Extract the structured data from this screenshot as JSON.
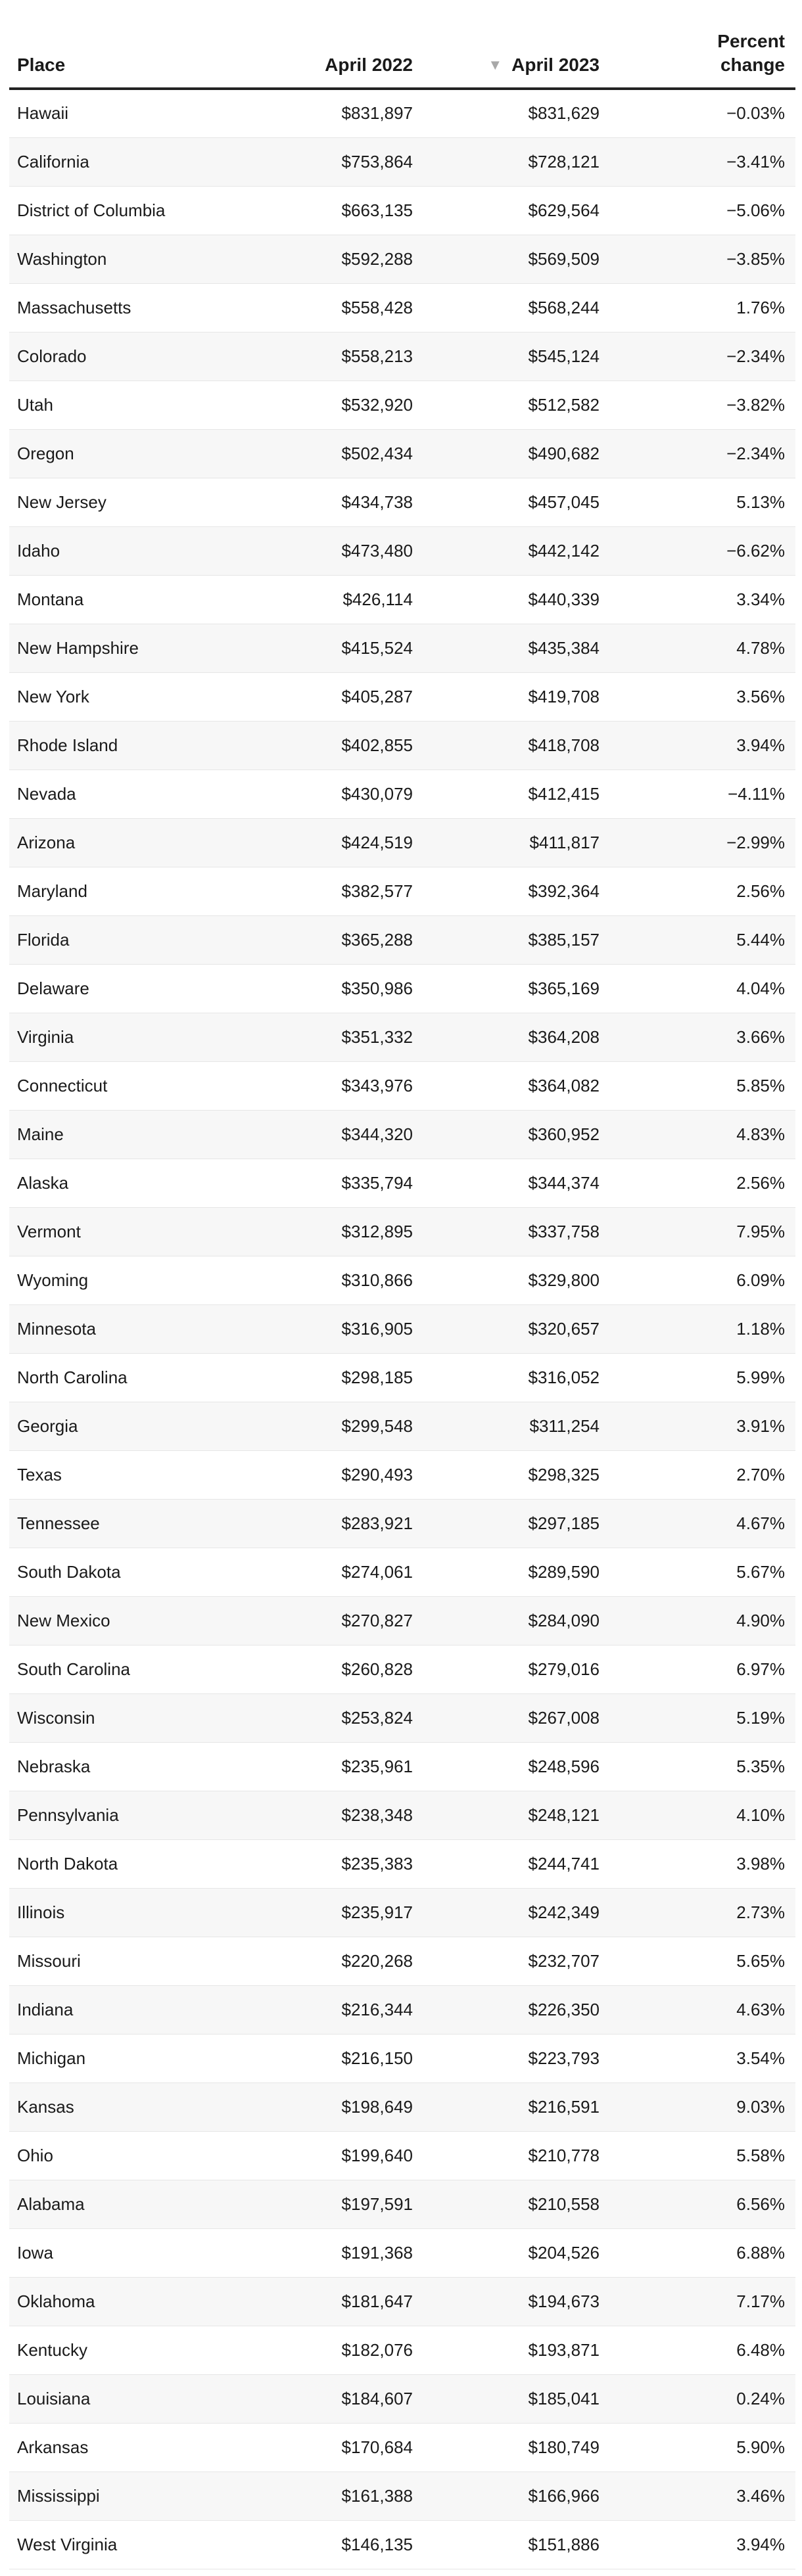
{
  "chart_data": {
    "type": "table",
    "columns": [
      {
        "key": "place",
        "label": "Place"
      },
      {
        "key": "april_2022",
        "label": "April 2022"
      },
      {
        "key": "april_2023",
        "label": "April 2023",
        "sorted": "descending"
      },
      {
        "key": "percent_change",
        "label": "Percent\nchange"
      }
    ],
    "rows": [
      {
        "place": "Hawaii",
        "april_2022": "$831,897",
        "april_2023": "$831,629",
        "percent_change": "−0.03%"
      },
      {
        "place": "California",
        "april_2022": "$753,864",
        "april_2023": "$728,121",
        "percent_change": "−3.41%"
      },
      {
        "place": "District of Columbia",
        "april_2022": "$663,135",
        "april_2023": "$629,564",
        "percent_change": "−5.06%"
      },
      {
        "place": "Washington",
        "april_2022": "$592,288",
        "april_2023": "$569,509",
        "percent_change": "−3.85%"
      },
      {
        "place": "Massachusetts",
        "april_2022": "$558,428",
        "april_2023": "$568,244",
        "percent_change": "1.76%"
      },
      {
        "place": "Colorado",
        "april_2022": "$558,213",
        "april_2023": "$545,124",
        "percent_change": "−2.34%"
      },
      {
        "place": "Utah",
        "april_2022": "$532,920",
        "april_2023": "$512,582",
        "percent_change": "−3.82%"
      },
      {
        "place": "Oregon",
        "april_2022": "$502,434",
        "april_2023": "$490,682",
        "percent_change": "−2.34%"
      },
      {
        "place": "New Jersey",
        "april_2022": "$434,738",
        "april_2023": "$457,045",
        "percent_change": "5.13%"
      },
      {
        "place": "Idaho",
        "april_2022": "$473,480",
        "april_2023": "$442,142",
        "percent_change": "−6.62%"
      },
      {
        "place": "Montana",
        "april_2022": "$426,114",
        "april_2023": "$440,339",
        "percent_change": "3.34%"
      },
      {
        "place": "New Hampshire",
        "april_2022": "$415,524",
        "april_2023": "$435,384",
        "percent_change": "4.78%"
      },
      {
        "place": "New York",
        "april_2022": "$405,287",
        "april_2023": "$419,708",
        "percent_change": "3.56%"
      },
      {
        "place": "Rhode Island",
        "april_2022": "$402,855",
        "april_2023": "$418,708",
        "percent_change": "3.94%"
      },
      {
        "place": "Nevada",
        "april_2022": "$430,079",
        "april_2023": "$412,415",
        "percent_change": "−4.11%"
      },
      {
        "place": "Arizona",
        "april_2022": "$424,519",
        "april_2023": "$411,817",
        "percent_change": "−2.99%"
      },
      {
        "place": "Maryland",
        "april_2022": "$382,577",
        "april_2023": "$392,364",
        "percent_change": "2.56%"
      },
      {
        "place": "Florida",
        "april_2022": "$365,288",
        "april_2023": "$385,157",
        "percent_change": "5.44%"
      },
      {
        "place": "Delaware",
        "april_2022": "$350,986",
        "april_2023": "$365,169",
        "percent_change": "4.04%"
      },
      {
        "place": "Virginia",
        "april_2022": "$351,332",
        "april_2023": "$364,208",
        "percent_change": "3.66%"
      },
      {
        "place": "Connecticut",
        "april_2022": "$343,976",
        "april_2023": "$364,082",
        "percent_change": "5.85%"
      },
      {
        "place": "Maine",
        "april_2022": "$344,320",
        "april_2023": "$360,952",
        "percent_change": "4.83%"
      },
      {
        "place": "Alaska",
        "april_2022": "$335,794",
        "april_2023": "$344,374",
        "percent_change": "2.56%"
      },
      {
        "place": "Vermont",
        "april_2022": "$312,895",
        "april_2023": "$337,758",
        "percent_change": "7.95%"
      },
      {
        "place": "Wyoming",
        "april_2022": "$310,866",
        "april_2023": "$329,800",
        "percent_change": "6.09%"
      },
      {
        "place": "Minnesota",
        "april_2022": "$316,905",
        "april_2023": "$320,657",
        "percent_change": "1.18%"
      },
      {
        "place": "North Carolina",
        "april_2022": "$298,185",
        "april_2023": "$316,052",
        "percent_change": "5.99%"
      },
      {
        "place": "Georgia",
        "april_2022": "$299,548",
        "april_2023": "$311,254",
        "percent_change": "3.91%"
      },
      {
        "place": "Texas",
        "april_2022": "$290,493",
        "april_2023": "$298,325",
        "percent_change": "2.70%"
      },
      {
        "place": "Tennessee",
        "april_2022": "$283,921",
        "april_2023": "$297,185",
        "percent_change": "4.67%"
      },
      {
        "place": "South Dakota",
        "april_2022": "$274,061",
        "april_2023": "$289,590",
        "percent_change": "5.67%"
      },
      {
        "place": "New Mexico",
        "april_2022": "$270,827",
        "april_2023": "$284,090",
        "percent_change": "4.90%"
      },
      {
        "place": "South Carolina",
        "april_2022": "$260,828",
        "april_2023": "$279,016",
        "percent_change": "6.97%"
      },
      {
        "place": "Wisconsin",
        "april_2022": "$253,824",
        "april_2023": "$267,008",
        "percent_change": "5.19%"
      },
      {
        "place": "Nebraska",
        "april_2022": "$235,961",
        "april_2023": "$248,596",
        "percent_change": "5.35%"
      },
      {
        "place": "Pennsylvania",
        "april_2022": "$238,348",
        "april_2023": "$248,121",
        "percent_change": "4.10%"
      },
      {
        "place": "North Dakota",
        "april_2022": "$235,383",
        "april_2023": "$244,741",
        "percent_change": "3.98%"
      },
      {
        "place": "Illinois",
        "april_2022": "$235,917",
        "april_2023": "$242,349",
        "percent_change": "2.73%"
      },
      {
        "place": "Missouri",
        "april_2022": "$220,268",
        "april_2023": "$232,707",
        "percent_change": "5.65%"
      },
      {
        "place": "Indiana",
        "april_2022": "$216,344",
        "april_2023": "$226,350",
        "percent_change": "4.63%"
      },
      {
        "place": "Michigan",
        "april_2022": "$216,150",
        "april_2023": "$223,793",
        "percent_change": "3.54%"
      },
      {
        "place": "Kansas",
        "april_2022": "$198,649",
        "april_2023": "$216,591",
        "percent_change": "9.03%"
      },
      {
        "place": "Ohio",
        "april_2022": "$199,640",
        "april_2023": "$210,778",
        "percent_change": "5.58%"
      },
      {
        "place": "Alabama",
        "april_2022": "$197,591",
        "april_2023": "$210,558",
        "percent_change": "6.56%"
      },
      {
        "place": "Iowa",
        "april_2022": "$191,368",
        "april_2023": "$204,526",
        "percent_change": "6.88%"
      },
      {
        "place": "Oklahoma",
        "april_2022": "$181,647",
        "april_2023": "$194,673",
        "percent_change": "7.17%"
      },
      {
        "place": "Kentucky",
        "april_2022": "$182,076",
        "april_2023": "$193,871",
        "percent_change": "6.48%"
      },
      {
        "place": "Louisiana",
        "april_2022": "$184,607",
        "april_2023": "$185,041",
        "percent_change": "0.24%"
      },
      {
        "place": "Arkansas",
        "april_2022": "$170,684",
        "april_2023": "$180,749",
        "percent_change": "5.90%"
      },
      {
        "place": "Mississippi",
        "april_2022": "$161,388",
        "april_2023": "$166,966",
        "percent_change": "3.46%"
      },
      {
        "place": "West Virginia",
        "april_2022": "$146,135",
        "april_2023": "$151,886",
        "percent_change": "3.94%"
      }
    ]
  },
  "sort_icon": "triangle-down-icon",
  "colors": {
    "row_alt": "#f7f7f7",
    "header_rule": "#222222",
    "sort_arrow": "#a8a8a8"
  }
}
